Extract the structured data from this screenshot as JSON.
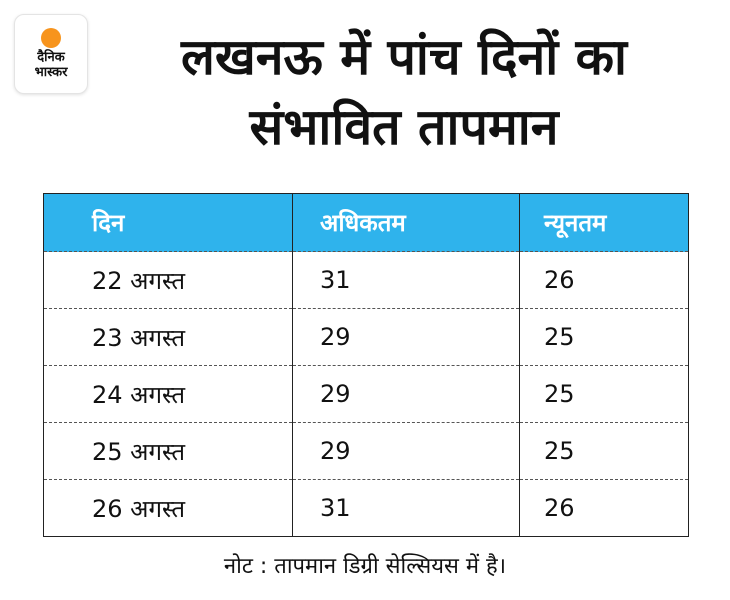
{
  "logo": {
    "line1": "दैनिक",
    "line2": "भास्कर",
    "accent_color": "#f7941d"
  },
  "headline": {
    "line1": "लखनऊ में पांच दिनों का",
    "line2": "संभावित तापमान"
  },
  "table": {
    "header_color": "#2fb3ec",
    "headers": [
      "दिन",
      "अधिकतम",
      "न्यूनतम"
    ],
    "rows": [
      {
        "date": "22 अगस्त",
        "max": "31",
        "min": "26"
      },
      {
        "date": "23 अगस्त",
        "max": "29",
        "min": "25"
      },
      {
        "date": "24 अगस्त",
        "max": "29",
        "min": "25"
      },
      {
        "date": "25 अगस्त",
        "max": "29",
        "min": "25"
      },
      {
        "date": "26 अगस्त",
        "max": "31",
        "min": "26"
      }
    ]
  },
  "note": "नोट : तापमान डिग्री सेल्सियस में है।"
}
